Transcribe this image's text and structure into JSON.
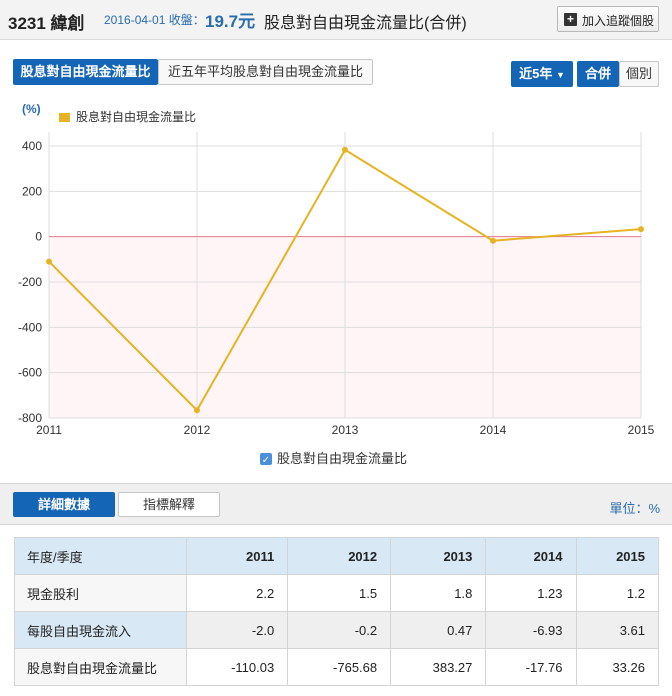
{
  "header": {
    "stock": "3231 緯創",
    "date_label": "2016-04-01 收盤：",
    "close_price": "19.7元",
    "title": "股息對自由現金流量比(合併)",
    "track_button": "加入追蹤個股"
  },
  "tabs": {
    "left": [
      "股息對自由現金流量比",
      "近五年平均股息對自由現金流量比"
    ],
    "period": "近5年",
    "consolidated": "合併",
    "individual": "個別"
  },
  "chart_data": {
    "type": "line",
    "ylabel": "(%)",
    "legend_top": "股息對自由現金流量比",
    "legend_bottom": "股息對自由現金流量比",
    "x": [
      "2011",
      "2012",
      "2013",
      "2014",
      "2015"
    ],
    "y_ticks": [
      "400",
      "200",
      "0",
      "-200",
      "-400",
      "-600",
      "-800"
    ],
    "ylim": [
      -800,
      400
    ],
    "series": [
      {
        "name": "股息對自由現金流量比",
        "values": [
          -110.03,
          -765.68,
          383.27,
          -17.76,
          33.26
        ],
        "color": "#e6b422"
      }
    ]
  },
  "bottom": {
    "tab_detail": "詳細數據",
    "tab_explain": "指標解釋",
    "unit": "單位：%"
  },
  "table": {
    "header": [
      "年度/季度",
      "2011",
      "2012",
      "2013",
      "2014",
      "2015"
    ],
    "rows": [
      [
        "現金股利",
        "2.2",
        "1.5",
        "1.8",
        "1.23",
        "1.2"
      ],
      [
        "每股自由現金流入",
        "-2.0",
        "-0.2",
        "0.47",
        "-6.93",
        "3.61"
      ],
      [
        "股息對自由現金流量比",
        "-110.03",
        "-765.68",
        "383.27",
        "-17.76",
        "33.26"
      ]
    ]
  }
}
